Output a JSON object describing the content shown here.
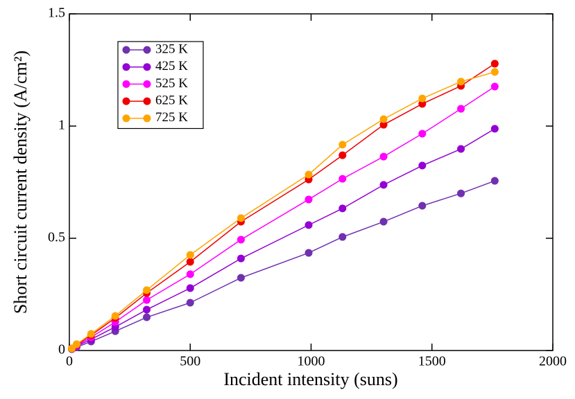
{
  "chart_data": {
    "type": "line",
    "x_label": "Incident intensity (suns)",
    "y_label": "Short circuit current density (A/cm²)",
    "x": [
      10,
      30,
      90,
      190,
      320,
      500,
      710,
      990,
      1130,
      1300,
      1460,
      1620,
      1760
    ],
    "series": [
      {
        "name": "325 K",
        "color": "#7030b0",
        "values": [
          0.006,
          0.015,
          0.04,
          0.086,
          0.148,
          0.213,
          0.324,
          0.435,
          0.506,
          0.574,
          0.645,
          0.7,
          0.756
        ]
      },
      {
        "name": "425 K",
        "color": "#9400d3",
        "values": [
          0.007,
          0.019,
          0.05,
          0.105,
          0.182,
          0.278,
          0.41,
          0.559,
          0.633,
          0.738,
          0.824,
          0.898,
          0.988
        ]
      },
      {
        "name": "525 K",
        "color": "#ff00ff",
        "values": [
          0.009,
          0.022,
          0.059,
          0.127,
          0.225,
          0.34,
          0.494,
          0.673,
          0.765,
          0.864,
          0.966,
          1.077,
          1.176
        ]
      },
      {
        "name": "625 K",
        "color": "#ee0000",
        "values": [
          0.009,
          0.025,
          0.068,
          0.145,
          0.256,
          0.395,
          0.574,
          0.762,
          0.87,
          1.006,
          1.099,
          1.179,
          1.278
        ]
      },
      {
        "name": "725 K",
        "color": "#ffa500",
        "values": [
          0.009,
          0.028,
          0.074,
          0.154,
          0.269,
          0.426,
          0.59,
          0.784,
          0.917,
          1.031,
          1.123,
          1.198,
          1.241
        ]
      }
    ],
    "xlim": [
      0,
      2000
    ],
    "xticks": [
      0,
      500,
      1000,
      1500,
      2000
    ],
    "ylim": [
      0,
      1.5
    ],
    "yticks": [
      0,
      0.5,
      1,
      1.5
    ],
    "grid": false,
    "legend": "upper left"
  }
}
